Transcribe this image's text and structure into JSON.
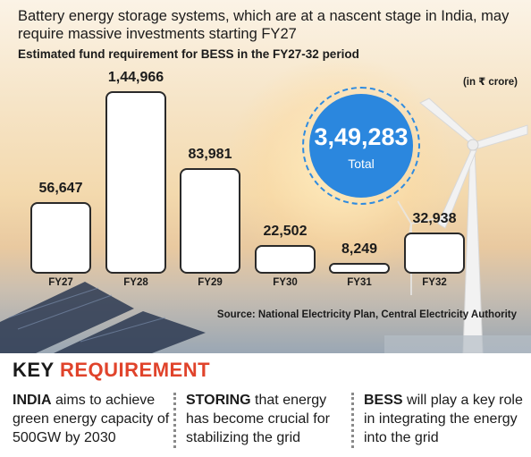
{
  "headline": "Battery energy storage systems, which are at a nascent stage in India, may require massive investments starting FY27",
  "subtitle": "Estimated fund requirement for BESS in the FY27-32 period",
  "unit_note": "(in ₹ crore)",
  "total": {
    "value": "3,49,283",
    "label": "Total"
  },
  "source": "Source: National Electricity Plan, Central Electricity Authority",
  "chart_data": {
    "type": "bar",
    "title": "Estimated fund requirement for BESS in the FY27-32 period",
    "unit": "(in ₹ crore)",
    "categories": [
      "FY27",
      "FY28",
      "FY29",
      "FY30",
      "FY31",
      "FY32"
    ],
    "values": [
      56647,
      144966,
      83981,
      22502,
      8249,
      32938
    ],
    "value_labels": [
      "56,647",
      "1,44,966",
      "83,981",
      "22,502",
      "8,249",
      "32,938"
    ],
    "xlabel": "",
    "ylabel": "",
    "ylim": [
      0,
      144966
    ],
    "grid": false
  },
  "key": {
    "title_part1": "KEY",
    "title_part2": "REQUIREMENT",
    "title_color": "#e0432b",
    "items": [
      {
        "bold": "INDIA",
        "text": " aims to achieve green energy capacity of 500GW by 2030"
      },
      {
        "bold": "STORING",
        "text": " that energy has become crucial for stabilizing the grid"
      },
      {
        "bold": "BESS",
        "text": " will play a key role in integrating the energy into the grid"
      }
    ]
  },
  "colors": {
    "bar_fill": "#ffffff",
    "bar_stroke": "#2a2a2a",
    "total_circle": "#2b87de"
  }
}
